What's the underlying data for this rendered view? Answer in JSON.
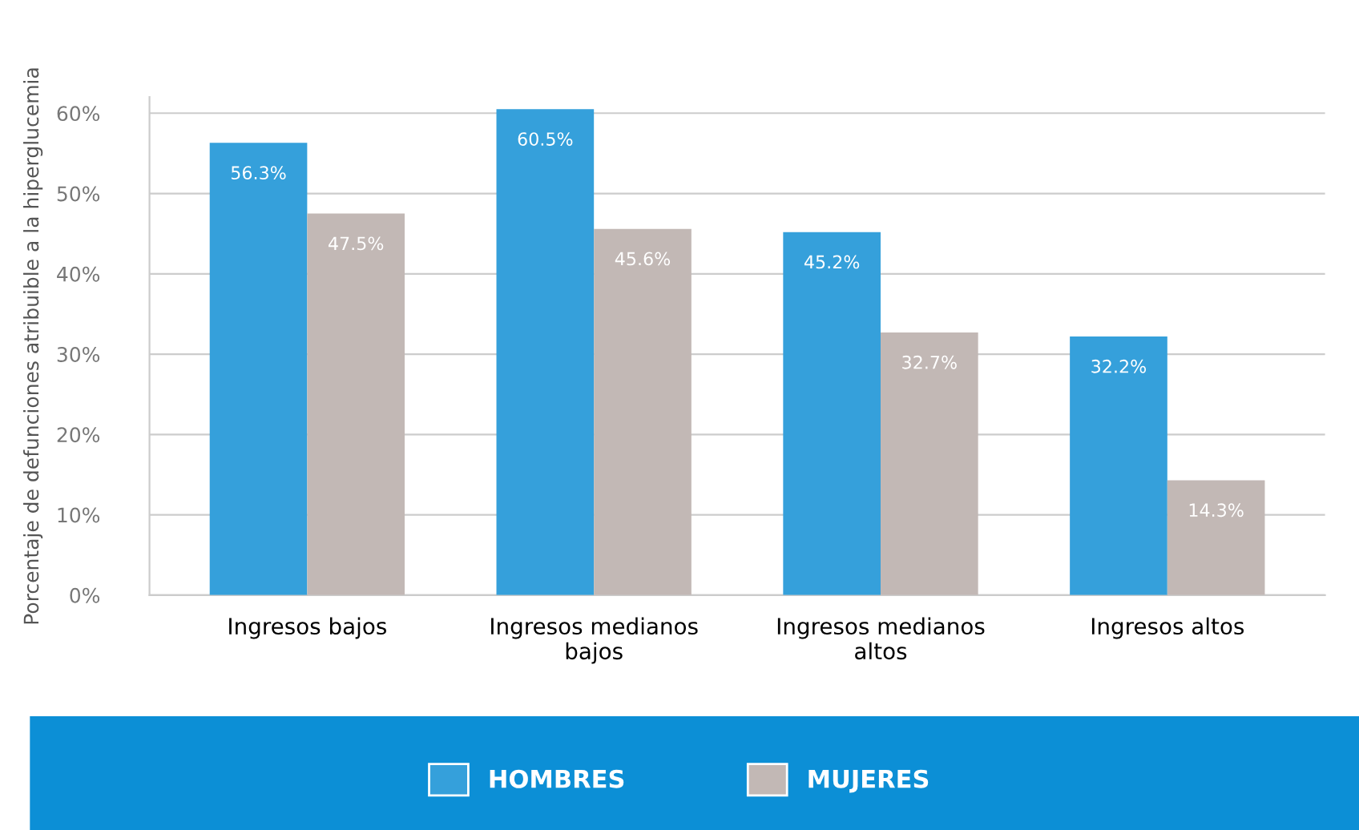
{
  "chart_data": {
    "type": "bar",
    "ylabel": "Porcentaje de defunciones atribuible a la hiperglucemia",
    "categories": [
      "Ingresos bajos",
      "Ingresos medianos\nbajos",
      "Ingresos medianos\naltos",
      "Ingresos altos"
    ],
    "series": [
      {
        "name": "HOMBRES",
        "color": "#35a0db",
        "values": [
          56.3,
          60.5,
          45.2,
          32.2
        ],
        "value_labels": [
          "56.3%",
          "60.5%",
          "45.2%",
          "32.2%"
        ]
      },
      {
        "name": "MUJERES",
        "color": "#c2b8b5",
        "values": [
          47.5,
          45.6,
          32.7,
          14.3
        ],
        "value_labels": [
          "47.5%",
          "45.6%",
          "32.7%",
          "14.3%"
        ]
      }
    ],
    "ylim": [
      0,
      62
    ],
    "yticks": [
      {
        "value": 0,
        "label": "0%"
      },
      {
        "value": 10,
        "label": "10%"
      },
      {
        "value": 20,
        "label": "20%"
      },
      {
        "value": 30,
        "label": "30%"
      },
      {
        "value": 40,
        "label": "40%"
      },
      {
        "value": 50,
        "label": "50%"
      },
      {
        "value": 60,
        "label": "60%"
      }
    ],
    "grid": "y",
    "legend": "bottom"
  }
}
